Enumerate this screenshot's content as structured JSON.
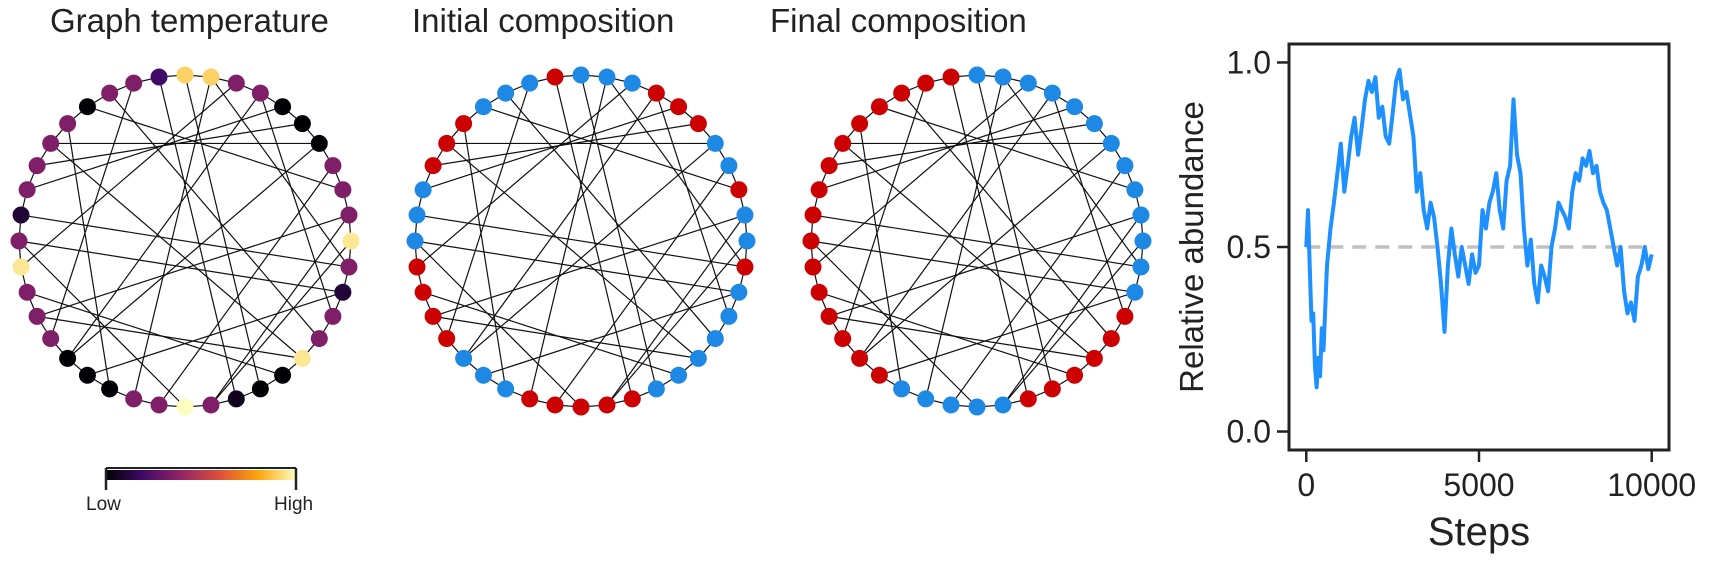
{
  "panels": {
    "temperature": {
      "title": "Graph temperature"
    },
    "initial": {
      "title": "Initial composition"
    },
    "final": {
      "title": "Final composition"
    }
  },
  "colorbar": {
    "low_label": "Low",
    "high_label": "High"
  },
  "colors": {
    "red": "#cc0000",
    "blue": "#1e88e5",
    "line": "#1e90ff",
    "reference": "#c0c0c0",
    "edge": "#111111",
    "temperature_scale": [
      "#000004",
      "#420a68",
      "#932667",
      "#dd513a",
      "#fca50a",
      "#fcfdbf"
    ]
  },
  "graph": {
    "node_count": 40,
    "edges": [
      [
        0,
        17
      ],
      [
        1,
        22
      ],
      [
        2,
        29
      ],
      [
        3,
        13
      ],
      [
        5,
        33
      ],
      [
        6,
        25
      ],
      [
        7,
        21
      ],
      [
        8,
        36
      ],
      [
        9,
        27
      ],
      [
        10,
        19
      ],
      [
        11,
        31
      ],
      [
        12,
        24
      ],
      [
        14,
        37
      ],
      [
        15,
        34
      ],
      [
        16,
        28
      ],
      [
        18,
        39
      ],
      [
        20,
        30
      ],
      [
        23,
        35
      ],
      [
        26,
        38
      ],
      [
        4,
        32
      ],
      [
        1,
        11
      ],
      [
        3,
        25
      ],
      [
        6,
        34
      ],
      [
        9,
        19
      ],
      [
        12,
        30
      ],
      [
        15,
        27
      ]
    ],
    "temperature_levels": [
      0.9,
      0.9,
      0.35,
      0.35,
      0.0,
      0.0,
      0.0,
      0.35,
      0.35,
      0.35,
      0.95,
      0.35,
      0.1,
      0.35,
      0.35,
      0.95,
      0.0,
      0.0,
      0.05,
      0.35,
      1.0,
      0.35,
      0.35,
      0.0,
      0.0,
      0.0,
      0.35,
      0.35,
      0.35,
      0.95,
      0.35,
      0.1,
      0.35,
      0.35,
      0.35,
      0.35,
      0.0,
      0.35,
      0.35,
      0.2
    ],
    "initial_composition": [
      "blue",
      "blue",
      "blue",
      "red",
      "red",
      "red",
      "blue",
      "blue",
      "red",
      "blue",
      "blue",
      "red",
      "blue",
      "blue",
      "blue",
      "blue",
      "blue",
      "blue",
      "red",
      "red",
      "red",
      "red",
      "red",
      "blue",
      "blue",
      "blue",
      "red",
      "red",
      "red",
      "red",
      "blue",
      "blue",
      "blue",
      "red",
      "red",
      "red",
      "blue",
      "blue",
      "blue",
      "red"
    ],
    "final_composition": [
      "blue",
      "blue",
      "blue",
      "blue",
      "blue",
      "blue",
      "blue",
      "blue",
      "blue",
      "blue",
      "blue",
      "blue",
      "blue",
      "red",
      "red",
      "red",
      "red",
      "red",
      "red",
      "blue",
      "blue",
      "blue",
      "blue",
      "blue",
      "red",
      "red",
      "red",
      "red",
      "red",
      "red",
      "red",
      "red",
      "red",
      "red",
      "red",
      "red",
      "red",
      "red",
      "red",
      "red"
    ]
  },
  "chart_data": {
    "type": "line",
    "xlabel": "Steps",
    "ylabel": "Relative abundance",
    "xlim": [
      -500,
      10500
    ],
    "ylim": [
      -0.05,
      1.05
    ],
    "xticks": [
      0,
      5000,
      10000
    ],
    "xtick_labels": [
      "0",
      "5000",
      "10000"
    ],
    "yticks": [
      0.0,
      0.5,
      1.0
    ],
    "ytick_labels": [
      "0.0",
      "0.5",
      "1.0"
    ],
    "reference_line": 0.5,
    "grid": false,
    "series": [
      {
        "x": [
          0,
          50,
          100,
          150,
          200,
          250,
          300,
          350,
          400,
          450,
          500,
          600,
          700,
          800,
          900,
          1000,
          1100,
          1200,
          1300,
          1400,
          1500,
          1600,
          1700,
          1800,
          1900,
          2000,
          2100,
          2200,
          2300,
          2400,
          2500,
          2600,
          2700,
          2800,
          2900,
          3000,
          3100,
          3200,
          3300,
          3400,
          3500,
          3600,
          3700,
          3800,
          3900,
          4000,
          4100,
          4200,
          4300,
          4400,
          4500,
          4600,
          4700,
          4800,
          4900,
          5000,
          5100,
          5200,
          5300,
          5400,
          5500,
          5600,
          5700,
          5800,
          5900,
          6000,
          6100,
          6200,
          6300,
          6400,
          6500,
          6600,
          6700,
          6800,
          6900,
          7000,
          7100,
          7200,
          7300,
          7400,
          7500,
          7600,
          7700,
          7800,
          7900,
          8000,
          8100,
          8200,
          8300,
          8400,
          8500,
          8600,
          8700,
          8800,
          8900,
          9000,
          9100,
          9200,
          9300,
          9400,
          9500,
          9600,
          9700,
          9800,
          9900,
          10000
        ],
        "y": [
          0.5,
          0.6,
          0.45,
          0.3,
          0.32,
          0.18,
          0.12,
          0.2,
          0.15,
          0.28,
          0.22,
          0.45,
          0.55,
          0.62,
          0.7,
          0.78,
          0.65,
          0.72,
          0.8,
          0.85,
          0.75,
          0.82,
          0.9,
          0.95,
          0.92,
          0.96,
          0.85,
          0.88,
          0.8,
          0.78,
          0.86,
          0.95,
          0.98,
          0.9,
          0.92,
          0.86,
          0.8,
          0.65,
          0.7,
          0.6,
          0.55,
          0.62,
          0.58,
          0.5,
          0.4,
          0.27,
          0.45,
          0.55,
          0.48,
          0.42,
          0.5,
          0.45,
          0.4,
          0.48,
          0.43,
          0.45,
          0.6,
          0.55,
          0.62,
          0.65,
          0.7,
          0.6,
          0.55,
          0.68,
          0.72,
          0.9,
          0.75,
          0.7,
          0.55,
          0.45,
          0.52,
          0.4,
          0.35,
          0.45,
          0.42,
          0.38,
          0.5,
          0.55,
          0.62,
          0.6,
          0.58,
          0.55,
          0.65,
          0.7,
          0.68,
          0.74,
          0.72,
          0.76,
          0.7,
          0.72,
          0.65,
          0.62,
          0.6,
          0.55,
          0.5,
          0.45,
          0.5,
          0.38,
          0.32,
          0.35,
          0.3,
          0.42,
          0.45,
          0.5,
          0.44,
          0.48
        ]
      }
    ]
  }
}
